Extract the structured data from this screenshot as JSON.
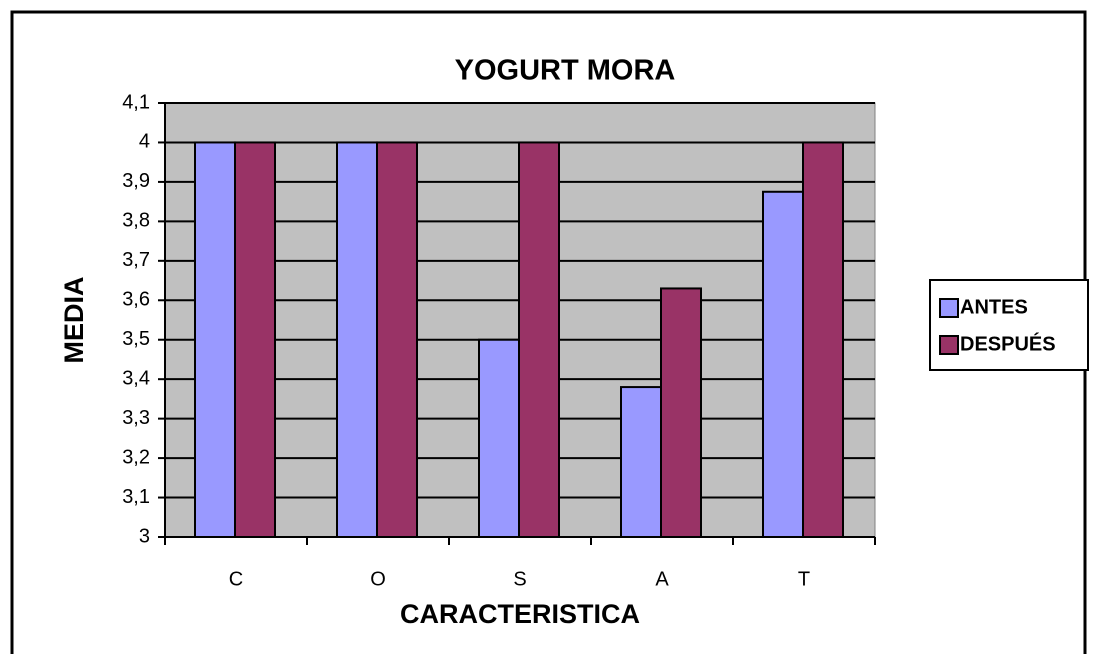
{
  "chart_data": {
    "type": "bar",
    "title": "YOGURT MORA",
    "x_label": "CARACTERISTICA",
    "y_label": "MEDIA",
    "categories": [
      "C",
      "O",
      "S",
      "A",
      "T"
    ],
    "series": [
      {
        "name": "ANTES",
        "color": "#9999ff",
        "values": [
          4,
          4,
          3.5,
          3.38,
          3.875
        ]
      },
      {
        "name": "DESPUÉS",
        "color": "#993366",
        "values": [
          4,
          4,
          4,
          3.63,
          4
        ]
      }
    ],
    "ylim": [
      3,
      4.1
    ],
    "yticks": [
      3,
      {
        "value": 3.1,
        "label": "3,1"
      },
      {
        "value": 3.2,
        "label": "3,2"
      },
      {
        "value": 3.3,
        "label": "3,3"
      },
      {
        "value": 3.4,
        "label": "3,4"
      },
      {
        "value": 3.5,
        "label": "3,5"
      },
      {
        "value": 3.6,
        "label": "3,6"
      },
      {
        "value": 3.7,
        "label": "3,7"
      },
      {
        "value": 3.8,
        "label": "3,8"
      },
      {
        "value": 3.9,
        "label": "3,9"
      },
      4,
      {
        "value": 4.1,
        "label": "4,1"
      }
    ],
    "grid": true,
    "legend": "right",
    "plot_background": "#c0c0c0"
  }
}
